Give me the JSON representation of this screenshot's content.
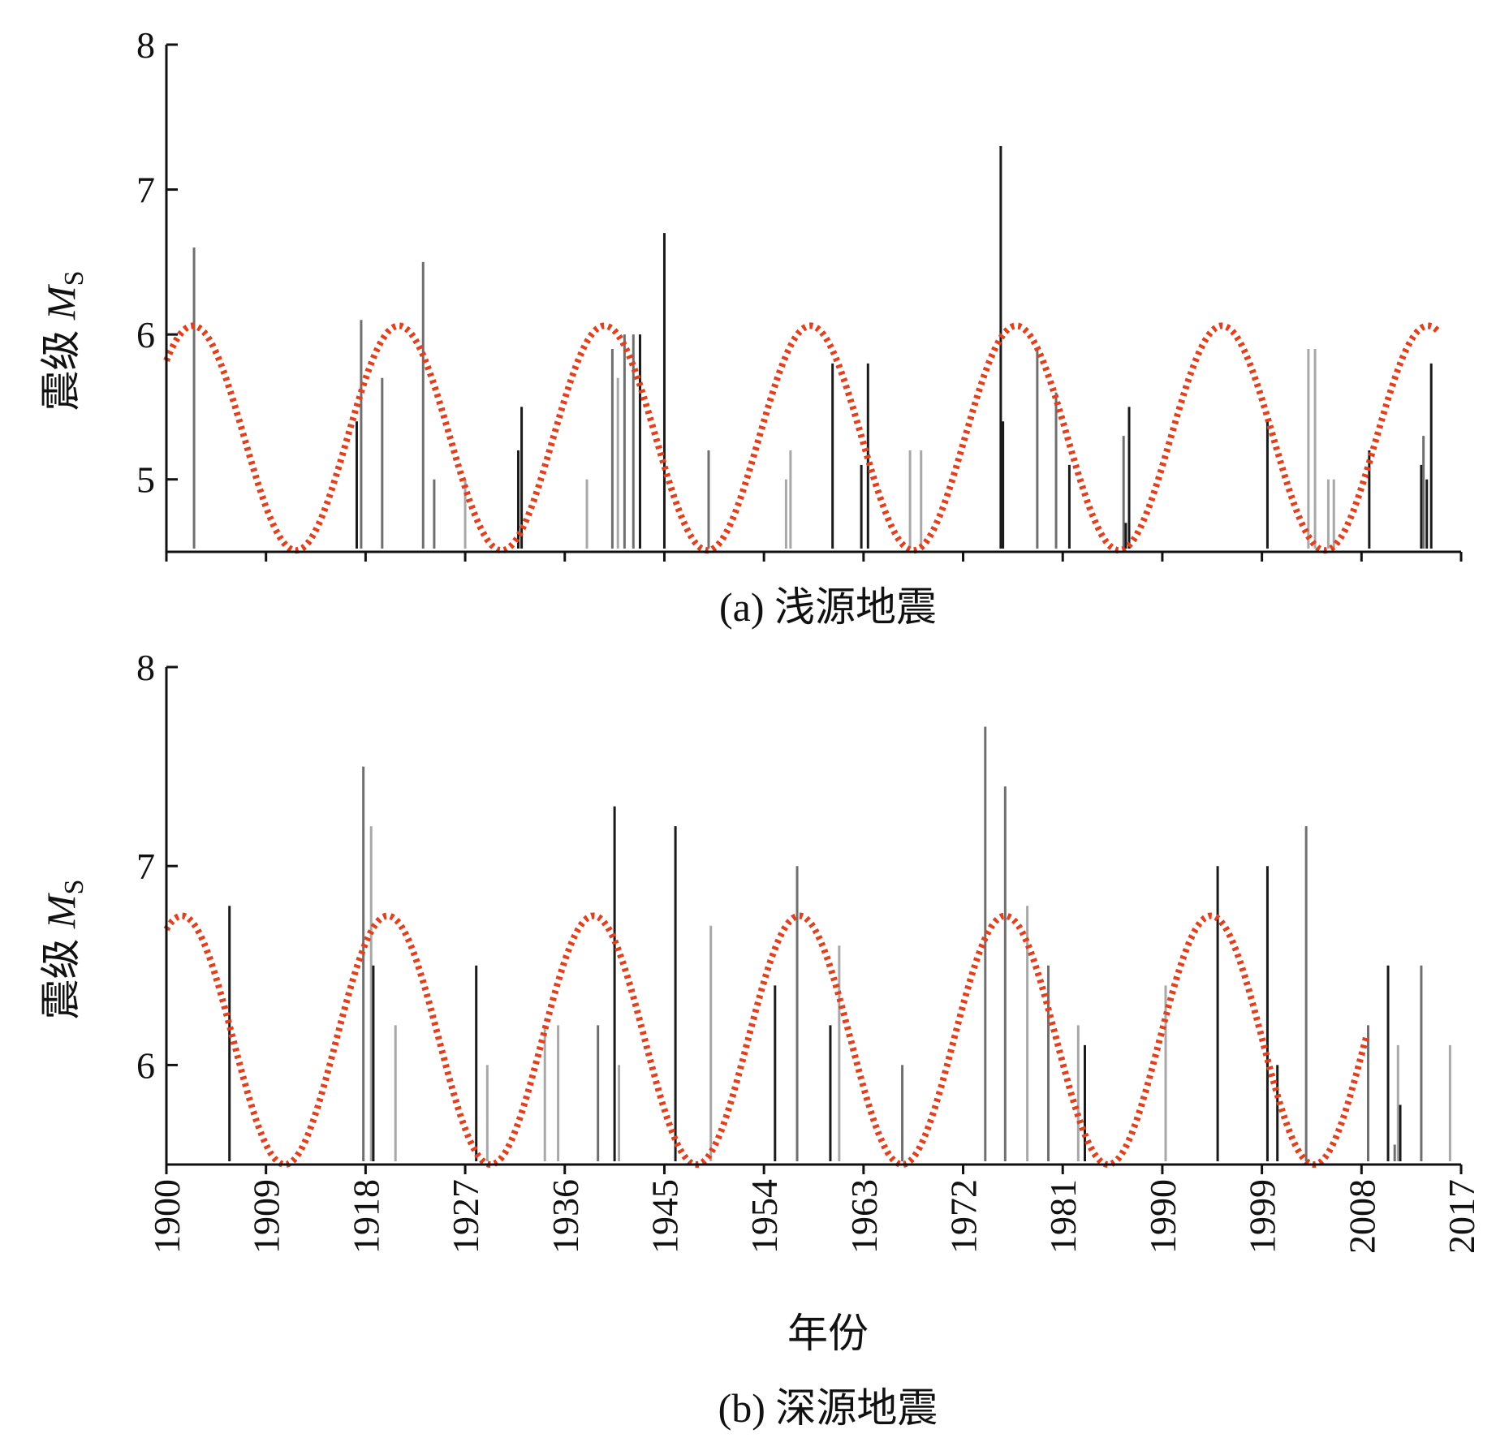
{
  "chart_data": [
    {
      "type": "bar",
      "caption": "(a) 浅源地震",
      "ylabel": {
        "text": "震级 ",
        "italic": "M",
        "sub": "S"
      },
      "xlabel": "",
      "xlim": [
        1900,
        2017
      ],
      "ylim": [
        4.5,
        8
      ],
      "yticks": [
        "5",
        "6",
        "7",
        "8"
      ],
      "xticks_labeled": false,
      "events": [
        {
          "x": 1902.5,
          "y": 6.6,
          "shade": "gray"
        },
        {
          "x": 1917.2,
          "y": 5.4,
          "shade": "dark"
        },
        {
          "x": 1917.6,
          "y": 6.1,
          "shade": "gray"
        },
        {
          "x": 1919.5,
          "y": 5.7,
          "shade": "gray"
        },
        {
          "x": 1923.2,
          "y": 6.5,
          "shade": "gray"
        },
        {
          "x": 1924.2,
          "y": 5.0,
          "shade": "gray"
        },
        {
          "x": 1927.0,
          "y": 5.0,
          "shade": "light"
        },
        {
          "x": 1931.8,
          "y": 5.2,
          "shade": "dark"
        },
        {
          "x": 1932.1,
          "y": 5.5,
          "shade": "dark"
        },
        {
          "x": 1938.0,
          "y": 5.0,
          "shade": "light"
        },
        {
          "x": 1940.3,
          "y": 5.9,
          "shade": "gray"
        },
        {
          "x": 1940.8,
          "y": 5.7,
          "shade": "light"
        },
        {
          "x": 1941.4,
          "y": 6.0,
          "shade": "gray"
        },
        {
          "x": 1942.2,
          "y": 6.0,
          "shade": "gray"
        },
        {
          "x": 1942.8,
          "y": 6.0,
          "shade": "dark"
        },
        {
          "x": 1945.0,
          "y": 6.7,
          "shade": "dark"
        },
        {
          "x": 1949.0,
          "y": 5.2,
          "shade": "gray"
        },
        {
          "x": 1956.0,
          "y": 5.0,
          "shade": "light"
        },
        {
          "x": 1956.4,
          "y": 5.2,
          "shade": "light"
        },
        {
          "x": 1960.2,
          "y": 5.8,
          "shade": "dark"
        },
        {
          "x": 1962.8,
          "y": 5.1,
          "shade": "dark"
        },
        {
          "x": 1963.4,
          "y": 5.8,
          "shade": "dark"
        },
        {
          "x": 1967.2,
          "y": 5.2,
          "shade": "light"
        },
        {
          "x": 1968.2,
          "y": 5.2,
          "shade": "light"
        },
        {
          "x": 1975.4,
          "y": 7.3,
          "shade": "dark"
        },
        {
          "x": 1975.6,
          "y": 5.4,
          "shade": "dark"
        },
        {
          "x": 1978.7,
          "y": 5.9,
          "shade": "gray"
        },
        {
          "x": 1980.4,
          "y": 5.6,
          "shade": "gray"
        },
        {
          "x": 1981.6,
          "y": 5.1,
          "shade": "dark"
        },
        {
          "x": 1986.5,
          "y": 5.3,
          "shade": "gray"
        },
        {
          "x": 1986.7,
          "y": 4.7,
          "shade": "dark"
        },
        {
          "x": 1987.0,
          "y": 5.5,
          "shade": "dark"
        },
        {
          "x": 1999.5,
          "y": 5.4,
          "shade": "dark"
        },
        {
          "x": 2003.2,
          "y": 5.9,
          "shade": "light"
        },
        {
          "x": 2003.8,
          "y": 5.9,
          "shade": "light"
        },
        {
          "x": 2005.0,
          "y": 5.0,
          "shade": "light"
        },
        {
          "x": 2005.5,
          "y": 5.0,
          "shade": "light"
        },
        {
          "x": 2008.7,
          "y": 5.2,
          "shade": "dark"
        },
        {
          "x": 2013.4,
          "y": 5.1,
          "shade": "dark"
        },
        {
          "x": 2013.6,
          "y": 5.3,
          "shade": "gray"
        },
        {
          "x": 2013.9,
          "y": 5.0,
          "shade": "dark"
        },
        {
          "x": 2014.3,
          "y": 5.8,
          "shade": "dark"
        }
      ],
      "curve": {
        "color": "#e0401e",
        "amplitude": 0.775,
        "center": 5.285,
        "period": 18.6,
        "peak_x": 1921.0,
        "x_range": [
          1900,
          2015
        ]
      }
    },
    {
      "type": "bar",
      "caption": "(b) 深源地震",
      "ylabel": {
        "text": "震级 ",
        "italic": "M",
        "sub": "S"
      },
      "xlabel": "年份",
      "xlim": [
        1900,
        2017
      ],
      "ylim": [
        5.5,
        8
      ],
      "yticks": [
        "6",
        "7",
        "8"
      ],
      "xticks_labeled": true,
      "xticks": [
        "1900",
        "1909",
        "1918",
        "1927",
        "1936",
        "1945",
        "1954",
        "1963",
        "1972",
        "1981",
        "1990",
        "1999",
        "2008",
        "2017"
      ],
      "events": [
        {
          "x": 1905.7,
          "y": 6.8,
          "shade": "dark"
        },
        {
          "x": 1917.8,
          "y": 7.5,
          "shade": "gray"
        },
        {
          "x": 1918.5,
          "y": 7.2,
          "shade": "light"
        },
        {
          "x": 1918.7,
          "y": 6.5,
          "shade": "dark"
        },
        {
          "x": 1920.7,
          "y": 6.2,
          "shade": "light"
        },
        {
          "x": 1928.0,
          "y": 6.5,
          "shade": "dark"
        },
        {
          "x": 1929.0,
          "y": 6.0,
          "shade": "light"
        },
        {
          "x": 1934.2,
          "y": 6.2,
          "shade": "light"
        },
        {
          "x": 1935.4,
          "y": 6.2,
          "shade": "light"
        },
        {
          "x": 1939.0,
          "y": 6.2,
          "shade": "gray"
        },
        {
          "x": 1940.5,
          "y": 7.3,
          "shade": "dark"
        },
        {
          "x": 1940.9,
          "y": 6.0,
          "shade": "light"
        },
        {
          "x": 1946.0,
          "y": 7.2,
          "shade": "dark"
        },
        {
          "x": 1949.2,
          "y": 6.7,
          "shade": "light"
        },
        {
          "x": 1955.0,
          "y": 6.4,
          "shade": "dark"
        },
        {
          "x": 1957.0,
          "y": 7.0,
          "shade": "gray"
        },
        {
          "x": 1960.0,
          "y": 6.2,
          "shade": "dark"
        },
        {
          "x": 1960.8,
          "y": 6.6,
          "shade": "light"
        },
        {
          "x": 1966.5,
          "y": 6.0,
          "shade": "gray"
        },
        {
          "x": 1974.0,
          "y": 7.7,
          "shade": "gray"
        },
        {
          "x": 1975.8,
          "y": 7.4,
          "shade": "gray"
        },
        {
          "x": 1977.8,
          "y": 6.8,
          "shade": "light"
        },
        {
          "x": 1979.7,
          "y": 6.5,
          "shade": "gray"
        },
        {
          "x": 1982.4,
          "y": 6.2,
          "shade": "light"
        },
        {
          "x": 1983.0,
          "y": 6.1,
          "shade": "dark"
        },
        {
          "x": 1990.3,
          "y": 6.4,
          "shade": "light"
        },
        {
          "x": 1995.0,
          "y": 7.0,
          "shade": "dark"
        },
        {
          "x": 1999.5,
          "y": 7.0,
          "shade": "dark"
        },
        {
          "x": 2000.4,
          "y": 6.0,
          "shade": "dark"
        },
        {
          "x": 2003.0,
          "y": 7.2,
          "shade": "gray"
        },
        {
          "x": 2008.6,
          "y": 6.2,
          "shade": "gray"
        },
        {
          "x": 2010.4,
          "y": 6.5,
          "shade": "dark"
        },
        {
          "x": 2011.0,
          "y": 5.6,
          "shade": "gray"
        },
        {
          "x": 2011.3,
          "y": 6.1,
          "shade": "light"
        },
        {
          "x": 2011.5,
          "y": 5.8,
          "shade": "dark"
        },
        {
          "x": 2013.4,
          "y": 6.5,
          "shade": "gray"
        },
        {
          "x": 2016.0,
          "y": 6.1,
          "shade": "light"
        }
      ],
      "curve": {
        "color": "#e0401e",
        "amplitude": 0.625,
        "center": 6.125,
        "period": 18.6,
        "peak_x": 1920.0,
        "x_range": [
          1900,
          2008.5
        ]
      }
    }
  ],
  "shades": {
    "dark": "#1a1a1a",
    "gray": "#6f6f6f",
    "light": "#a8a8a8"
  }
}
